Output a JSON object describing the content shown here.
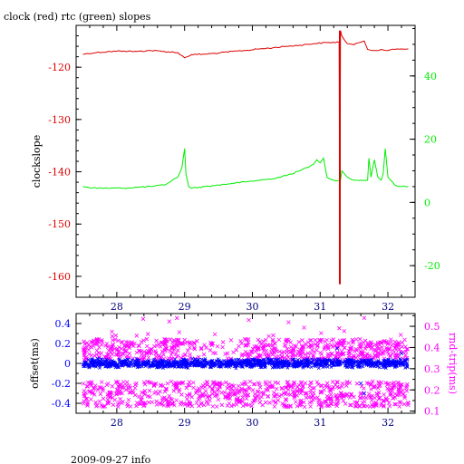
{
  "title": "clock (red) rtc (green) slopes",
  "footer": "2009-09-27 info",
  "colors": {
    "clock": "#dd0000",
    "rtc": "#00ee00",
    "offset": "#0000ff",
    "rndtrip": "#ff00ff",
    "axis": "#000000"
  },
  "chart_data": [
    {
      "type": "line",
      "ylabel": "clockslope",
      "y2label": "",
      "xlim": [
        27.4,
        32.4
      ],
      "ylim": [
        -164,
        -112
      ],
      "y2lim": [
        -30,
        56
      ],
      "xticks": [
        28,
        29,
        30,
        31,
        32
      ],
      "yticks": [
        -120,
        -130,
        -140,
        -150,
        -160
      ],
      "y2ticks": [
        40,
        20,
        0,
        -20
      ],
      "series": [
        {
          "name": "clock",
          "axis": "left",
          "x": [
            27.5,
            27.7,
            27.9,
            28.1,
            28.3,
            28.5,
            28.7,
            28.9,
            29.0,
            29.1,
            29.3,
            29.5,
            29.7,
            29.9,
            30.1,
            30.3,
            30.5,
            30.7,
            30.9,
            31.1,
            31.28,
            31.29,
            31.3,
            31.32,
            31.4,
            31.5,
            31.6,
            31.65,
            31.7,
            31.8,
            31.9,
            32.0,
            32.1,
            32.2,
            32.3
          ],
          "values": [
            -117.5,
            -117.2,
            -117.0,
            -116.9,
            -117.0,
            -116.8,
            -117.0,
            -117.2,
            -118.2,
            -117.6,
            -117.5,
            -117.3,
            -117.0,
            -116.8,
            -116.5,
            -116.3,
            -116.0,
            -115.8,
            -115.5,
            -115.3,
            -115.2,
            -161.5,
            -113.0,
            -114.0,
            -115.5,
            -115.7,
            -115.2,
            -115.0,
            -116.6,
            -116.8,
            -116.6,
            -116.8,
            -116.6,
            -116.5,
            -116.5
          ]
        },
        {
          "name": "rtc",
          "axis": "right",
          "x": [
            27.5,
            27.7,
            27.9,
            28.1,
            28.3,
            28.5,
            28.7,
            28.9,
            28.96,
            29.0,
            29.02,
            29.06,
            29.1,
            29.3,
            29.5,
            29.7,
            29.9,
            30.1,
            30.3,
            30.5,
            30.7,
            30.8,
            30.9,
            30.95,
            31.0,
            31.05,
            31.1,
            31.2,
            31.3,
            31.32,
            31.4,
            31.5,
            31.6,
            31.7,
            31.72,
            31.75,
            31.8,
            31.85,
            31.9,
            31.93,
            31.96,
            32.0,
            32.1,
            32.2,
            32.3
          ],
          "values": [
            5.0,
            4.5,
            4.5,
            4.5,
            4.8,
            5.0,
            5.5,
            8.0,
            11.0,
            17.0,
            9.0,
            5.0,
            4.5,
            5.0,
            5.5,
            6.0,
            6.5,
            7.0,
            7.5,
            8.5,
            10.0,
            11.0,
            12.0,
            13.5,
            12.5,
            14.0,
            8.0,
            7.0,
            7.0,
            10.0,
            8.0,
            7.0,
            7.0,
            7.0,
            14.0,
            8.0,
            13.5,
            8.0,
            7.0,
            9.0,
            17.0,
            8.0,
            5.5,
            5.0,
            5.0
          ]
        }
      ]
    },
    {
      "type": "scatter",
      "ylabel": "offset(ms)",
      "y2label": "rnd-trip(ms)",
      "xlim": [
        27.4,
        32.4
      ],
      "ylim": [
        -0.5,
        0.5
      ],
      "y2lim": [
        0.09,
        0.56
      ],
      "xticks": [
        28,
        29,
        30,
        31,
        32
      ],
      "yticks": [
        0.4,
        0.2,
        0,
        -0.2,
        -0.4
      ],
      "y2ticks": [
        0.5,
        0.4,
        0.3,
        0.2,
        0.1
      ],
      "series": [
        {
          "name": "rnd-trip",
          "axis": "right",
          "marker": "x",
          "x_range": [
            27.5,
            32.3
          ],
          "bands": [
            [
              0.12,
              0.24
            ],
            [
              0.34,
              0.44
            ]
          ],
          "gap": [
            29.1,
            29.8
          ]
        },
        {
          "name": "offset",
          "axis": "left",
          "marker": "x",
          "x_range": [
            27.5,
            32.3
          ],
          "center": 0.0,
          "spread": 0.05
        }
      ]
    }
  ]
}
